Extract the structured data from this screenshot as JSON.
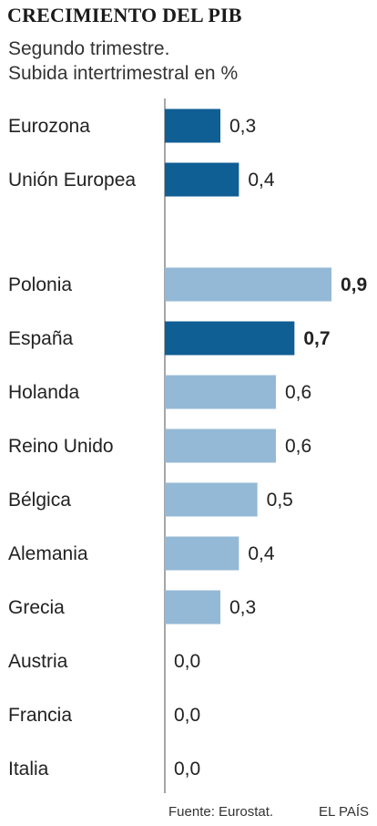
{
  "header": {
    "title": "CRECIMIENTO DEL PIB",
    "subtitle_line1": "Segundo trimestre.",
    "subtitle_line2": "Subida intertrimestral en %"
  },
  "footer": {
    "source": "Fuente: Eurostat.",
    "brand": "EL PAÍS"
  },
  "colors": {
    "highlight": "#0f5e94",
    "default": "#94b9d6",
    "axis": "#888888"
  },
  "chart_data": {
    "type": "bar",
    "orientation": "horizontal",
    "title": "CRECIMIENTO DEL PIB",
    "subtitle": "Segundo trimestre. Subida intertrimestral en %",
    "xlim": [
      0,
      0.9
    ],
    "grid": false,
    "groups": [
      {
        "categories": [
          "Eurozona",
          "Unión Europea"
        ],
        "values": [
          0.3,
          0.4
        ],
        "labels": [
          "0,3",
          "0,4"
        ],
        "highlight": [
          true,
          true
        ],
        "bold_label": [
          false,
          false
        ]
      },
      {
        "categories": [
          "Polonia",
          "España",
          "Holanda",
          "Reino Unido",
          "Bélgica",
          "Alemania",
          "Grecia",
          "Austria",
          "Francia",
          "Italia"
        ],
        "values": [
          0.9,
          0.7,
          0.6,
          0.6,
          0.5,
          0.4,
          0.3,
          0.0,
          0.0,
          0.0
        ],
        "labels": [
          "0,9",
          "0,7",
          "0,6",
          "0,6",
          "0,5",
          "0,4",
          "0,3",
          "0,0",
          "0,0",
          "0,0"
        ],
        "highlight": [
          false,
          true,
          false,
          false,
          false,
          false,
          false,
          false,
          false,
          false
        ],
        "bold_label": [
          true,
          true,
          false,
          false,
          false,
          false,
          false,
          false,
          false,
          false
        ]
      }
    ]
  }
}
